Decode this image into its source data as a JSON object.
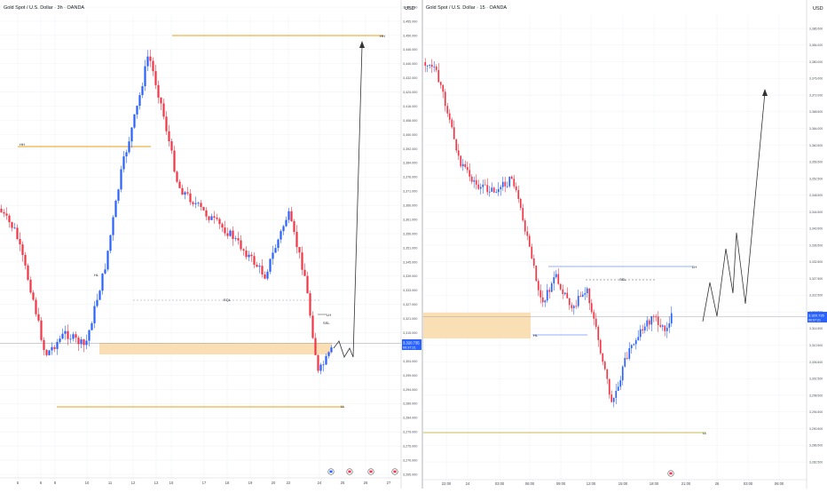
{
  "colors": {
    "up": "#2962ff",
    "down": "#f23645",
    "level_line": "#e6a117",
    "zone_fill": "#f9d9a8",
    "trendline": "#2962ff",
    "price_tag": "#2962ff",
    "text": "#131722",
    "axis_text": "#4a4e59",
    "grid": "#eef0f3",
    "separator": "#d1d4dc",
    "projection": "#333333"
  },
  "left_panel": {
    "title": "Gold Spot / U.S. Dollar · 3h · OANDA",
    "currency_label": "USD",
    "price_ticks": [
      "3,460.000",
      "3,455.000",
      "3,450.000",
      "3,445.000",
      "3,440.000",
      "3,432.000",
      "3,424.000",
      "3,416.000",
      "3,408.000",
      "3,400.000",
      "3,392.000",
      "3,384.000",
      "3,376.000",
      "3,371.000",
      "3,366.000",
      "3,361.000",
      "3,356.000",
      "3,351.000",
      "3,345.000",
      "3,339.000",
      "3,333.000",
      "3,327.000",
      "3,321.000",
      "3,315.000",
      "3,309.000",
      "3,304.000",
      "3,299.000",
      "3,294.000",
      "3,289.000",
      "3,284.000",
      "3,279.000",
      "3,275.000",
      "3,270.000",
      "3,265.000"
    ],
    "date_ticks": [
      "5",
      "6",
      "8",
      "10",
      "11",
      "12",
      "13",
      "15",
      "17",
      "18",
      "19",
      "20",
      "22",
      "24",
      "25",
      "26",
      "27"
    ],
    "current_price": "3,320.735",
    "current_timer": "00:37:21",
    "labels": {
      "hh": "HH",
      "hh2": "HH",
      "hl": "HL",
      "eql": "EQL",
      "lh": "LH",
      "sell": "SSL",
      "ll": "LL"
    },
    "event_icons": [
      "event-flag-icon",
      "event-flag-icon",
      "event-flag-icon",
      "event-flag-icon"
    ]
  },
  "right_panel": {
    "title": "Gold Spot / U.S. Dollar · 15 · OANDA",
    "currency_label": "USD",
    "price_ticks": [
      "3,386.500",
      "3,384.000",
      "3,380.000",
      "3,376.000",
      "3,372.000",
      "3,368.500",
      "3,364.000",
      "3,360.500",
      "3,356.500",
      "3,352.500",
      "3,348.500",
      "3,344.500",
      "3,340.500",
      "3,336.500",
      "3,332.500",
      "3,327.500",
      "3,322.500",
      "3,318.500",
      "3,314.500",
      "3,310.500",
      "3,306.500",
      "3,302.500",
      "3,298.500",
      "3,294.500",
      "3,290.500",
      "3,286.500",
      "3,282.500"
    ],
    "date_ticks": [
      "22:00",
      "24",
      "03:00",
      "06:00",
      "09:00",
      "12:00",
      "15:00",
      "18:00",
      "21:00",
      "26",
      "03:00",
      "06:00"
    ],
    "current_price": "3,320.735",
    "current_timer": "00:07:21",
    "labels": {
      "lh": "LH",
      "ssl": "SSL",
      "ll": "LL",
      "hl": "HL"
    },
    "event_icons": [
      "event-flag-icon"
    ]
  }
}
